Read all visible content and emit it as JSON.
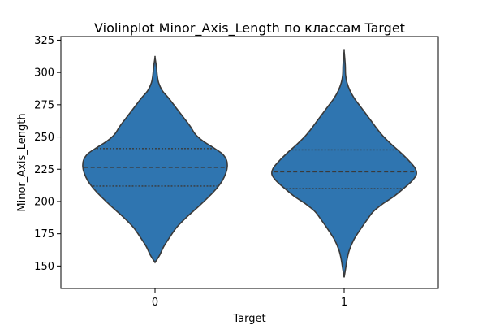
{
  "chart_data": {
    "type": "violin",
    "title": "Violinplot Minor_Axis_Length по классам Target",
    "xlabel": "Target",
    "ylabel": "Minor_Axis_Length",
    "categories": [
      "0",
      "1"
    ],
    "ylim": [
      132.6,
      327.8
    ],
    "yticks": [
      150,
      175,
      200,
      225,
      250,
      275,
      300,
      325
    ],
    "ytick_labels": [
      "150",
      "175",
      "200",
      "225",
      "250",
      "275",
      "300",
      "325"
    ],
    "grid": false,
    "fill_color": "#2f75b0",
    "edge_color": "#3a3a3a",
    "violins": [
      {
        "category": "0",
        "min": 152.8,
        "max": 311.5,
        "q1": 212.0,
        "median": 226.5,
        "q3": 241.0,
        "profile": [
          [
            152.8,
            0.0
          ],
          [
            158,
            0.06
          ],
          [
            165,
            0.12
          ],
          [
            172,
            0.2
          ],
          [
            180,
            0.3
          ],
          [
            188,
            0.44
          ],
          [
            196,
            0.6
          ],
          [
            204,
            0.75
          ],
          [
            210,
            0.85
          ],
          [
            216,
            0.93
          ],
          [
            222,
            0.98
          ],
          [
            227,
            1.0
          ],
          [
            232,
            0.99
          ],
          [
            237,
            0.93
          ],
          [
            242,
            0.8
          ],
          [
            247,
            0.66
          ],
          [
            252,
            0.56
          ],
          [
            258,
            0.49
          ],
          [
            264,
            0.41
          ],
          [
            272,
            0.3
          ],
          [
            280,
            0.19
          ],
          [
            286,
            0.1
          ],
          [
            292,
            0.05
          ],
          [
            298,
            0.03
          ],
          [
            304,
            0.02
          ],
          [
            311.5,
            0.0
          ]
        ]
      },
      {
        "category": "1",
        "min": 141.2,
        "max": 316.5,
        "q1": 210.0,
        "median": 223.0,
        "q3": 240.0,
        "profile": [
          [
            141.2,
            0.0
          ],
          [
            148,
            0.02
          ],
          [
            155,
            0.04
          ],
          [
            162,
            0.07
          ],
          [
            170,
            0.13
          ],
          [
            178,
            0.22
          ],
          [
            186,
            0.32
          ],
          [
            192,
            0.4
          ],
          [
            198,
            0.53
          ],
          [
            204,
            0.69
          ],
          [
            210,
            0.82
          ],
          [
            216,
            0.94
          ],
          [
            221,
            1.0
          ],
          [
            226,
            0.98
          ],
          [
            232,
            0.89
          ],
          [
            238,
            0.78
          ],
          [
            244,
            0.66
          ],
          [
            250,
            0.55
          ],
          [
            256,
            0.46
          ],
          [
            262,
            0.38
          ],
          [
            268,
            0.3
          ],
          [
            274,
            0.22
          ],
          [
            280,
            0.14
          ],
          [
            286,
            0.08
          ],
          [
            292,
            0.04
          ],
          [
            298,
            0.02
          ],
          [
            306,
            0.015
          ],
          [
            316.5,
            0.0
          ]
        ]
      }
    ]
  }
}
